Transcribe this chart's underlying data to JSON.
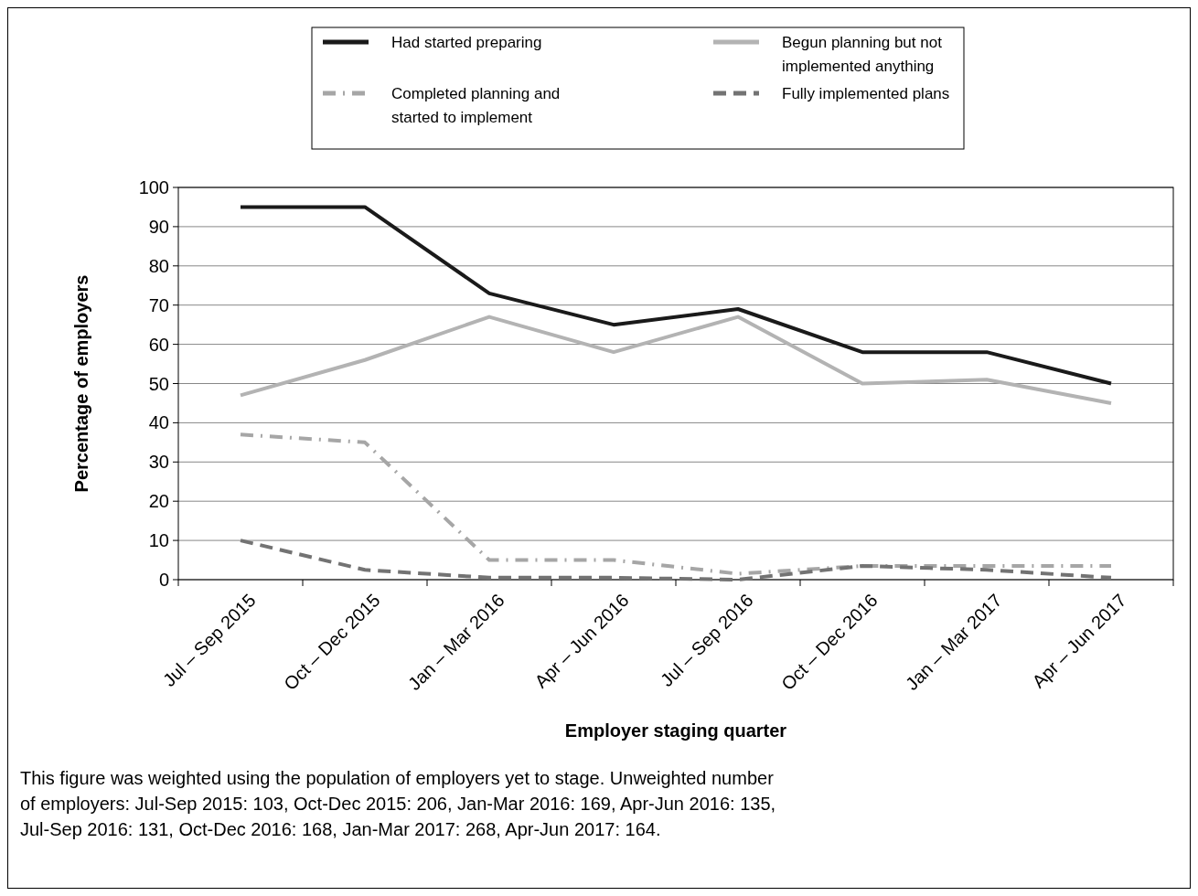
{
  "chart_data": {
    "type": "line",
    "xlabel": "Employer staging quarter",
    "ylabel": "Percentage of employers",
    "categories": [
      "Jul – Sep 2015",
      "Oct – Dec 2015",
      "Jan – Mar 2016",
      "Apr – Jun 2016",
      "Jul – Sep 2016",
      "Oct – Dec 2016",
      "Jan – Mar 2017",
      "Apr – Jun 2017"
    ],
    "series": [
      {
        "name": "Had started preparing",
        "color": "#1a1a1a",
        "line_style": "solid",
        "values": [
          95,
          95,
          73,
          65,
          69,
          58,
          58,
          50
        ]
      },
      {
        "name": "Begun planning but not implemented anything",
        "color": "#b3b3b3",
        "line_style": "solid",
        "values": [
          47,
          56,
          67,
          58,
          67,
          50,
          51,
          45
        ]
      },
      {
        "name": "Completed planning and started to implement",
        "color": "#a6a6a6",
        "line_style": "dashdot",
        "values": [
          37,
          35,
          5,
          5,
          1.5,
          3.5,
          3.5,
          3.5
        ]
      },
      {
        "name": "Fully implemented plans",
        "color": "#737373",
        "line_style": "dashed",
        "values": [
          10,
          2.5,
          0.5,
          0.5,
          0,
          3.5,
          2.5,
          0.5
        ]
      }
    ],
    "ylim": [
      0,
      100
    ],
    "yticks": [
      0,
      10,
      20,
      30,
      40,
      50,
      60,
      70,
      80,
      90,
      100
    ],
    "grid": "y",
    "legend": "top",
    "annotations": [
      "This figure was weighted using the population of employers yet to stage. Unweighted number of employers: Jul-Sep 2015: 103, Oct-Dec 2015: 206, Jan-Mar 2016: 169, Apr-Jun 2016: 135, Jul-Sep 2016: 131, Oct-Dec 2016: 168, Jan-Mar 2017: 268, Apr-Jun 2017: 164."
    ]
  }
}
